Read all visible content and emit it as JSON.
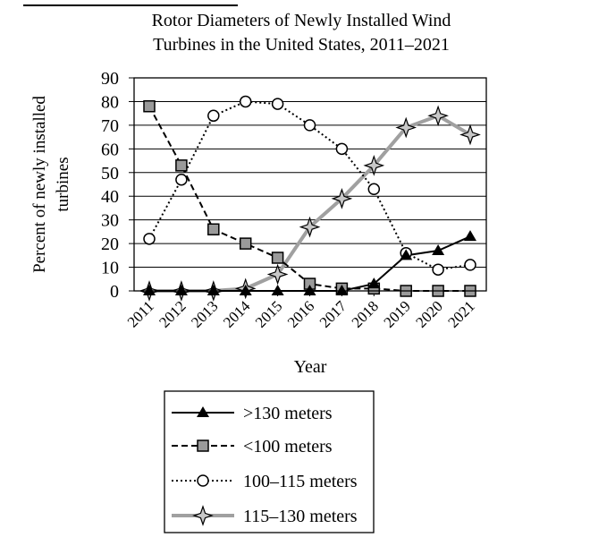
{
  "chart_data": {
    "type": "line",
    "title_lines": [
      "Rotor Diameters of Newly Installed Wind",
      "Turbines in the United States, 2011–2021"
    ],
    "xlabel": "Year",
    "ylabel_lines": [
      "Percent of newly installed",
      "turbines"
    ],
    "categories": [
      "2011",
      "2012",
      "2013",
      "2014",
      "2015",
      "2016",
      "2017",
      "2018",
      "2019",
      "2020",
      "2021"
    ],
    "yticks": [
      0,
      10,
      20,
      30,
      40,
      50,
      60,
      70,
      80,
      90
    ],
    "ylim": [
      0,
      90
    ],
    "grid": true,
    "legend_position": "bottom-center",
    "series": [
      {
        "name": ">130 meters",
        "style": "solid-black-triangle",
        "color": "#000000",
        "values": [
          0,
          0,
          0,
          0,
          0,
          0,
          0,
          3,
          15,
          17,
          23
        ]
      },
      {
        "name": "<100 meters",
        "style": "dashed-black-square",
        "color": "#000000",
        "values": [
          78,
          53,
          26,
          20,
          14,
          3,
          1,
          1,
          0,
          0,
          0
        ]
      },
      {
        "name": "100–115 meters",
        "style": "dotted-black-circle",
        "color": "#000000",
        "values": [
          22,
          47,
          74,
          80,
          79,
          70,
          60,
          43,
          16,
          9,
          11
        ]
      },
      {
        "name": "115–130 meters",
        "style": "thick-gray-star",
        "color": "#a0a0a0",
        "values": [
          0,
          0,
          0,
          1,
          7,
          27,
          39,
          53,
          69,
          74,
          66
        ]
      }
    ]
  }
}
